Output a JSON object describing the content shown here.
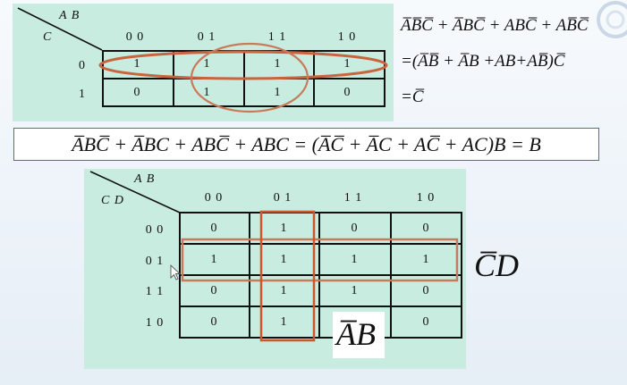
{
  "map3": {
    "col_var_label": "A B",
    "row_var_label": "C",
    "col_headers": [
      "0 0",
      "0 1",
      "1 1",
      "1 0"
    ],
    "row_headers": [
      "0",
      "1"
    ],
    "cells": [
      [
        "1",
        "1",
        "1",
        "1"
      ],
      [
        "0",
        "1",
        "1",
        "0"
      ]
    ]
  },
  "map3_derivation": {
    "line1": [
      "A̅B̅C̅",
      "+",
      "A̅BC̅",
      "+",
      "ABC̅",
      "+",
      "AB̅C̅"
    ],
    "line2_prefix": "=(",
    "line2_terms": [
      "A̅B̅",
      "+",
      "A̅B",
      "+",
      "AB",
      "+",
      "AB̅"
    ],
    "line2_suffix": ")C̅",
    "line3": "=C̅"
  },
  "equation_bar": "A̅BC̅ + A̅BC + ABC̅ + ABC = (A̅C̅ + A̅C + AC̅ + AC)B = B",
  "map4": {
    "col_var_label": "A B",
    "row_var_label": "C D",
    "col_headers": [
      "0 0",
      "0 1",
      "1 1",
      "1 0"
    ],
    "row_headers": [
      "0 0",
      "0 1",
      "1 1",
      "1 0"
    ],
    "cells": [
      [
        "0",
        "1",
        "0",
        "0"
      ],
      [
        "1",
        "1",
        "1",
        "1"
      ],
      [
        "0",
        "1",
        "1",
        "0"
      ],
      [
        "0",
        "1",
        "0",
        "0"
      ]
    ]
  },
  "annotations": {
    "row_group": "C̅D",
    "col_group": "A̅B"
  },
  "colors": {
    "panel": "#c8ecdf",
    "group_loop": "#c8653f",
    "group_rect": "#d0552a",
    "grid": "#111111"
  }
}
